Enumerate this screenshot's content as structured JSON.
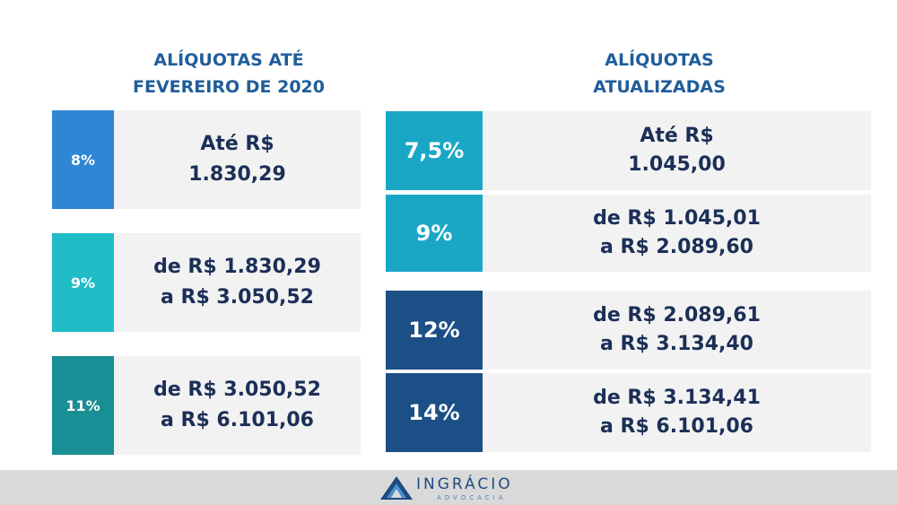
{
  "left": {
    "title_line1": "ALÍQUOTAS ATÉ",
    "title_line2": "FEVEREIRO DE 2020",
    "rows": [
      {
        "pct": "8%",
        "line1": "Até R$",
        "line2": "1.830,29",
        "color": "#2f86d4"
      },
      {
        "pct": "9%",
        "line1": "de R$ 1.830,29",
        "line2": "a R$ 3.050,52",
        "color": "#20bcc8"
      },
      {
        "pct": "11%",
        "line1": "de R$ 3.050,52",
        "line2": "a R$ 6.101,06",
        "color": "#188f94"
      }
    ]
  },
  "right": {
    "title_line1": "ALÍQUOTAS",
    "title_line2": "ATUALIZADAS",
    "rows": [
      {
        "pct": "7,5%",
        "line1": "Até R$",
        "line2": "1.045,00",
        "color": "#1aa7c6"
      },
      {
        "pct": "9%",
        "line1": "de R$ 1.045,01",
        "line2": "a R$ 2.089,60",
        "color": "#1aa7c6"
      },
      {
        "pct": "12%",
        "line1": "de R$ 2.089,61",
        "line2": "a R$ 3.134,40",
        "color": "#1c4f86"
      },
      {
        "pct": "14%",
        "line1": "de R$ 3.134,41",
        "line2": "a R$ 6.101,06",
        "color": "#1c4f86"
      }
    ]
  },
  "footer": {
    "brand": "INGRÁCIO",
    "brand_sub": "ADVOCACIA",
    "logo_icon": "triangle-logo-icon"
  }
}
